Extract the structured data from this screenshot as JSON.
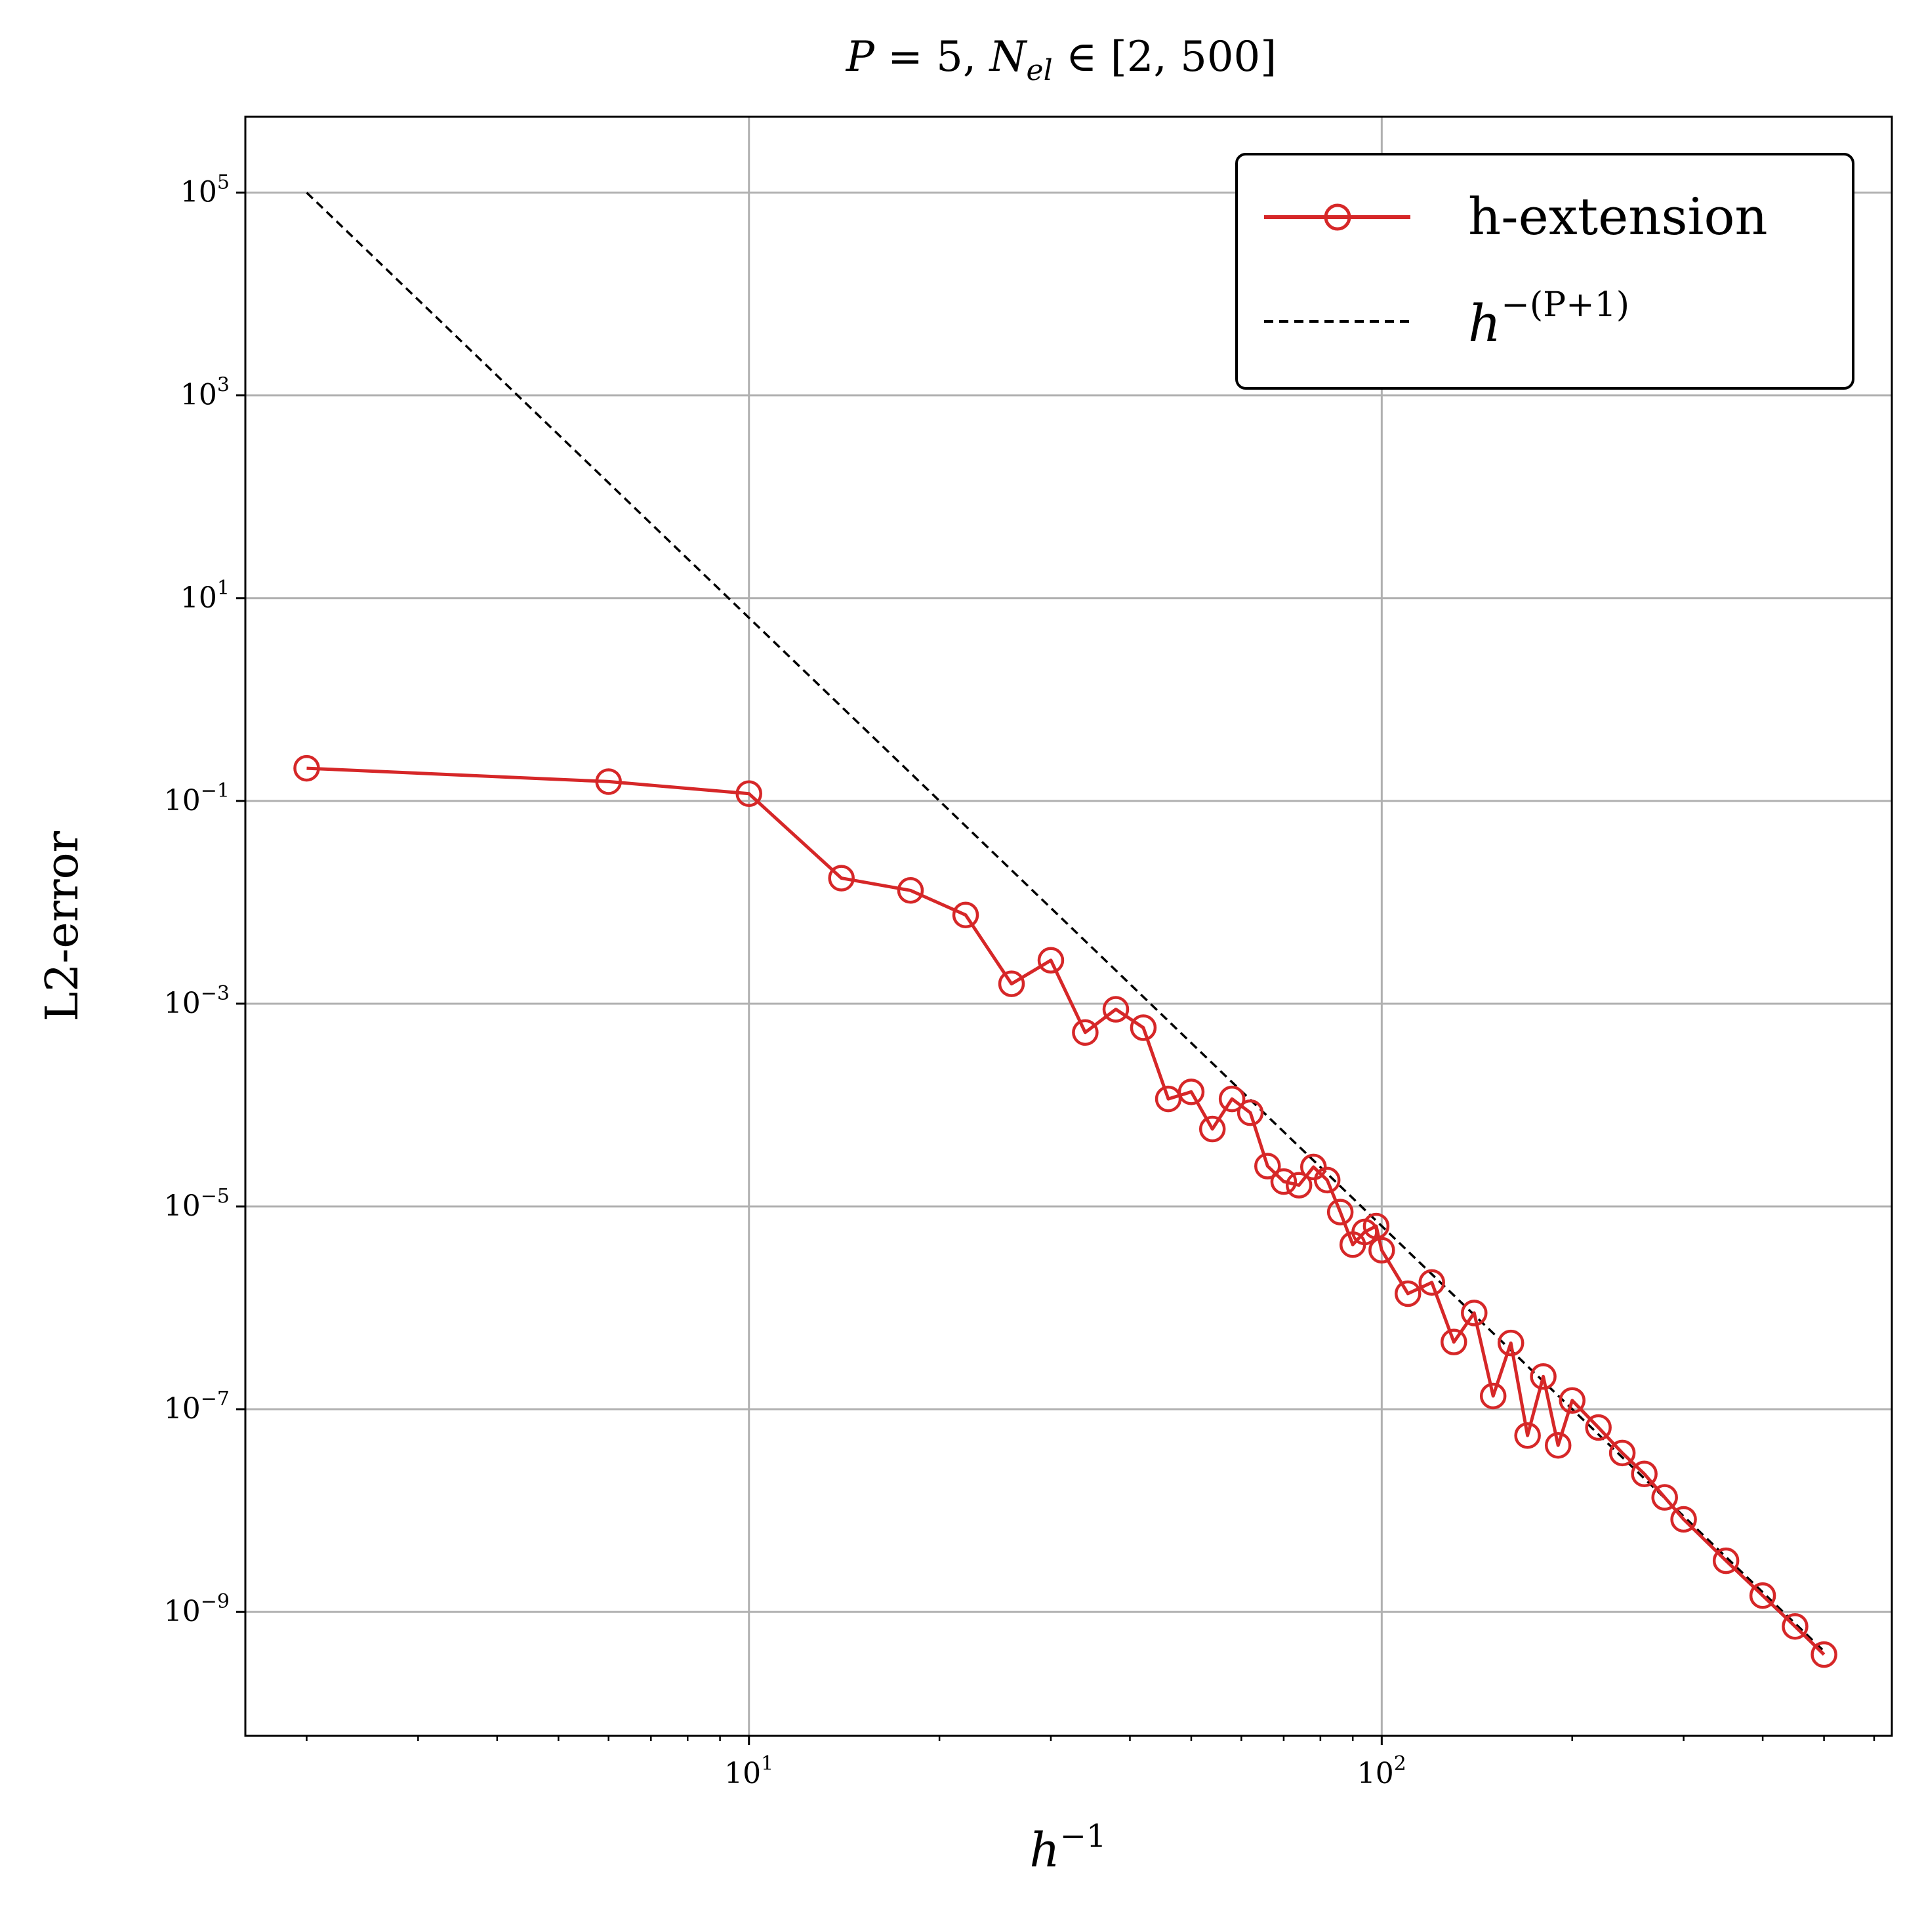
{
  "chart_data": {
    "type": "line",
    "title": {
      "lhs": "P",
      "eq": " = 5, ",
      "n": "N",
      "sub": "el",
      "rest": " ∈ [2, 500]"
    },
    "xlabel": {
      "base": "h",
      "exp": "−1"
    },
    "ylabel": "L2-error",
    "x_scale": "log",
    "y_scale": "log",
    "xlim": [
      1.6,
      640
    ],
    "ylim": [
      6e-11,
      560000.0
    ],
    "grid": true,
    "x_ticks": [
      {
        "value": 10,
        "base": "10",
        "exp": "1"
      },
      {
        "value": 100,
        "base": "10",
        "exp": "2"
      }
    ],
    "y_ticks": [
      {
        "value": 100000.0,
        "base": "10",
        "exp": "5"
      },
      {
        "value": 1000.0,
        "base": "10",
        "exp": "3"
      },
      {
        "value": 10.0,
        "base": "10",
        "exp": "1"
      },
      {
        "value": 0.1,
        "base": "10",
        "exp": "−1"
      },
      {
        "value": 0.001,
        "base": "10",
        "exp": "−3"
      },
      {
        "value": 1e-05,
        "base": "10",
        "exp": "−5"
      },
      {
        "value": 1e-07,
        "base": "10",
        "exp": "−7"
      },
      {
        "value": 1e-09,
        "base": "10",
        "exp": "−9"
      }
    ],
    "legend": {
      "position": "top-right",
      "entries": [
        {
          "label": "h-extension"
        },
        {
          "label_base": "h",
          "label_exp": "−(P+1)"
        }
      ]
    },
    "series": [
      {
        "name": "h-extension",
        "color": "#d62728",
        "style": "solid",
        "marker": "open-circle",
        "x": [
          2,
          6,
          10,
          14,
          18,
          22,
          26,
          30,
          34,
          38,
          42,
          46,
          50,
          54,
          58,
          62,
          66,
          70,
          74,
          78,
          82,
          86,
          90,
          94,
          98,
          100,
          110,
          120,
          130,
          140,
          150,
          160,
          170,
          180,
          190,
          200,
          220,
          240,
          260,
          280,
          300,
          350,
          400,
          450,
          500
        ],
        "y": [
          0.21,
          0.155,
          0.118,
          0.0173,
          0.0131,
          0.0075,
          0.00157,
          0.00268,
          0.00052,
          0.00088,
          0.00058,
          0.000115,
          0.000135,
          5.8e-05,
          0.000115,
          8.4e-05,
          2.5e-05,
          1.76e-05,
          1.62e-05,
          2.45e-05,
          1.82e-05,
          8.8e-06,
          4.2e-06,
          5.6e-06,
          6.4e-06,
          3.7e-06,
          1.38e-06,
          1.78e-06,
          4.6e-07,
          8.9e-07,
          1.35e-07,
          4.5e-07,
          5.5e-08,
          2.1e-07,
          4.4e-08,
          1.22e-07,
          6.6e-08,
          3.7e-08,
          2.3e-08,
          1.35e-08,
          8.2e-09,
          3.2e-09,
          1.45e-09,
          7.2e-10,
          3.8e-10
        ]
      },
      {
        "name": "h^-(P+1)",
        "color": "#000000",
        "style": "dashed",
        "marker": "none",
        "x": [
          2,
          500
        ],
        "y": [
          100000.0,
          4.1e-10
        ]
      }
    ]
  }
}
